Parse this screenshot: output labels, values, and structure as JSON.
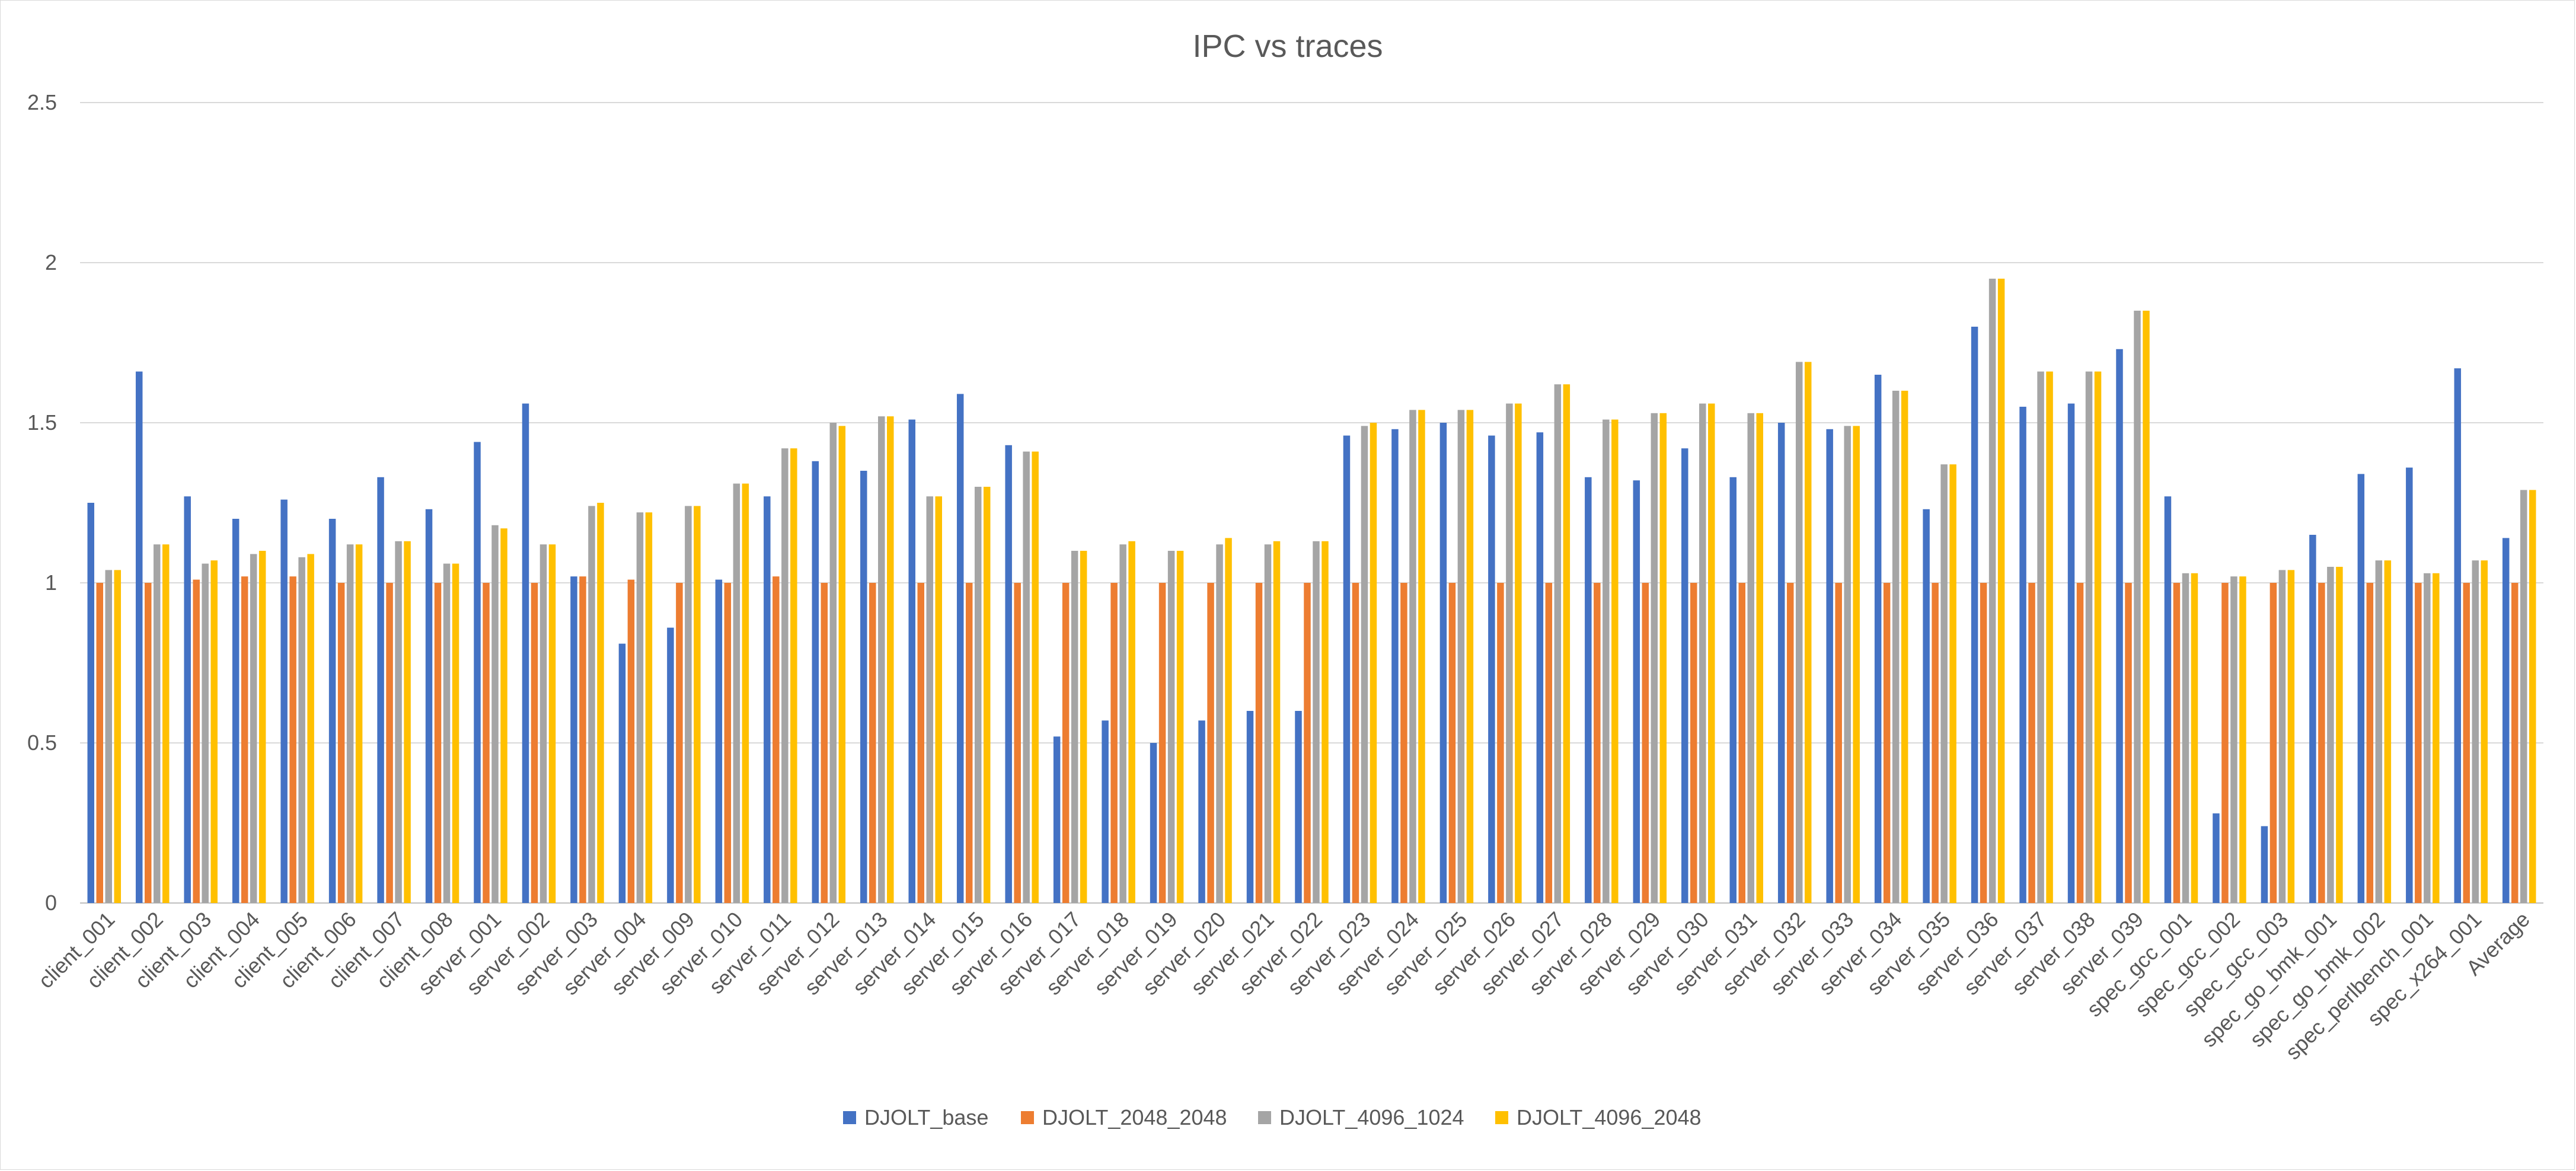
{
  "chart_data": {
    "type": "bar",
    "title": "IPC vs traces",
    "xlabel": "",
    "ylabel": "",
    "ylim": [
      0,
      2.5
    ],
    "yticks": [
      "0",
      "0.5",
      "1",
      "1.5",
      "2",
      "2.5"
    ],
    "grid": true,
    "legend_position": "bottom",
    "categories": [
      "client_001",
      "client_002",
      "client_003",
      "client_004",
      "client_005",
      "client_006",
      "client_007",
      "client_008",
      "server_001",
      "server_002",
      "server_003",
      "server_004",
      "server_009",
      "server_010",
      "server_011",
      "server_012",
      "server_013",
      "server_014",
      "server_015",
      "server_016",
      "server_017",
      "server_018",
      "server_019",
      "server_020",
      "server_021",
      "server_022",
      "server_023",
      "server_024",
      "server_025",
      "server_026",
      "server_027",
      "server_028",
      "server_029",
      "server_030",
      "server_031",
      "server_032",
      "server_033",
      "server_034",
      "server_035",
      "server_036",
      "server_037",
      "server_038",
      "server_039",
      "spec_gcc_001",
      "spec_gcc_002",
      "spec_gcc_003",
      "spec_go_bmk_001",
      "spec_go_bmk_002",
      "spec_perlbench_001",
      "spec_x264_001",
      "Average"
    ],
    "series": [
      {
        "name": "DJOLT_base",
        "color": "#4472c4",
        "values": [
          1.25,
          1.66,
          1.27,
          1.2,
          1.26,
          1.2,
          1.33,
          1.23,
          1.44,
          1.56,
          1.02,
          0.81,
          0.86,
          1.01,
          1.27,
          1.38,
          1.35,
          1.51,
          1.59,
          1.43,
          0.52,
          0.57,
          0.5,
          0.57,
          0.6,
          0.6,
          1.46,
          1.48,
          1.5,
          1.46,
          1.47,
          1.33,
          1.32,
          1.42,
          1.33,
          1.5,
          1.48,
          1.65,
          1.23,
          1.8,
          1.55,
          1.56,
          1.73,
          1.27,
          0.28,
          0.24,
          1.15,
          1.34,
          1.36,
          1.67,
          1.14
        ]
      },
      {
        "name": "DJOLT_2048_2048",
        "color": "#ed7d31",
        "values": [
          1,
          1,
          1.01,
          1.02,
          1.02,
          1,
          1,
          1,
          1,
          1,
          1.02,
          1.01,
          1,
          1,
          1.02,
          1,
          1,
          1,
          1,
          1,
          1,
          1,
          1,
          1,
          1,
          1,
          1,
          1,
          1,
          1,
          1,
          1,
          1,
          1,
          1,
          1,
          1,
          1,
          1,
          1,
          1,
          1,
          1,
          1,
          1,
          1,
          1,
          1,
          1,
          1,
          1
        ]
      },
      {
        "name": "DJOLT_4096_1024",
        "color": "#a5a5a5",
        "values": [
          1.04,
          1.12,
          1.06,
          1.09,
          1.08,
          1.12,
          1.13,
          1.06,
          1.18,
          1.12,
          1.24,
          1.22,
          1.24,
          1.31,
          1.42,
          1.5,
          1.52,
          1.27,
          1.3,
          1.41,
          1.1,
          1.12,
          1.1,
          1.12,
          1.12,
          1.13,
          1.49,
          1.54,
          1.54,
          1.56,
          1.62,
          1.51,
          1.53,
          1.56,
          1.53,
          1.69,
          1.49,
          1.6,
          1.37,
          1.95,
          1.66,
          1.66,
          1.85,
          1.03,
          1.02,
          1.04,
          1.05,
          1.07,
          1.03,
          1.07,
          1.29
        ]
      },
      {
        "name": "DJOLT_4096_2048",
        "color": "#ffc000",
        "values": [
          1.04,
          1.12,
          1.07,
          1.1,
          1.09,
          1.12,
          1.13,
          1.06,
          1.17,
          1.12,
          1.25,
          1.22,
          1.24,
          1.31,
          1.42,
          1.49,
          1.52,
          1.27,
          1.3,
          1.41,
          1.1,
          1.13,
          1.1,
          1.14,
          1.13,
          1.13,
          1.5,
          1.54,
          1.54,
          1.56,
          1.62,
          1.51,
          1.53,
          1.56,
          1.53,
          1.69,
          1.49,
          1.6,
          1.37,
          1.95,
          1.66,
          1.66,
          1.85,
          1.03,
          1.02,
          1.04,
          1.05,
          1.07,
          1.03,
          1.07,
          1.29
        ]
      }
    ]
  }
}
